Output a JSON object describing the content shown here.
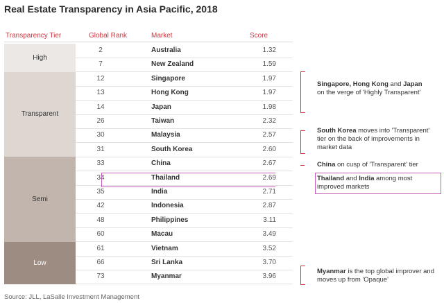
{
  "title": "Real Estate Transparency in Asia Pacific, 2018",
  "headers": {
    "tier": "Transparency Tier",
    "rank": "Global Rank",
    "market": "Market",
    "score": "Score"
  },
  "chart_data": {
    "type": "table",
    "columns": [
      "Transparency Tier",
      "Global Rank",
      "Market",
      "Score"
    ],
    "tiers": [
      {
        "name": "High",
        "color": "#ece8e5",
        "rows": 2
      },
      {
        "name": "Transparent",
        "color": "#ddd6d1",
        "rows": 6
      },
      {
        "name": "Semi",
        "color": "#c1b5ad",
        "rows": 6
      },
      {
        "name": "Low",
        "color": "#9c8c82",
        "rows": 3
      }
    ],
    "rows": [
      {
        "rank": "2",
        "market": "Australia",
        "score": "1.32"
      },
      {
        "rank": "7",
        "market": "New Zealand",
        "score": "1.59"
      },
      {
        "rank": "12",
        "market": "Singapore",
        "score": "1.97"
      },
      {
        "rank": "13",
        "market": "Hong Kong",
        "score": "1.97"
      },
      {
        "rank": "14",
        "market": "Japan",
        "score": "1.98"
      },
      {
        "rank": "26",
        "market": "Taiwan",
        "score": "2.32"
      },
      {
        "rank": "30",
        "market": "Malaysia",
        "score": "2.57"
      },
      {
        "rank": "31",
        "market": "South Korea",
        "score": "2.60"
      },
      {
        "rank": "33",
        "market": "China",
        "score": "2.67"
      },
      {
        "rank": "34",
        "market": "Thailand",
        "score": "2.69"
      },
      {
        "rank": "35",
        "market": "India",
        "score": "2.71"
      },
      {
        "rank": "42",
        "market": "Indonesia",
        "score": "2.87"
      },
      {
        "rank": "48",
        "market": "Philippines",
        "score": "3.11"
      },
      {
        "rank": "60",
        "market": "Macau",
        "score": "3.49"
      },
      {
        "rank": "61",
        "market": "Vietnam",
        "score": "3.52"
      },
      {
        "rank": "66",
        "market": "Sri Lanka",
        "score": "3.70"
      },
      {
        "rank": "73",
        "market": "Myanmar",
        "score": "3.96"
      }
    ]
  },
  "annotations": {
    "a1_bold": "Singapore, Hong Kong",
    "a1_mid": " and ",
    "a1_bold2": "Japan",
    "a1_rest": "on the verge of 'Highly Transparent'",
    "a2_bold": "South Korea",
    "a2_rest": " moves into 'Transparent' tier on the back of improvements in market data",
    "a3_bold": "China",
    "a3_rest": " on cusp of 'Transparent' tier",
    "a4_bold": "Thailand",
    "a4_mid": " and ",
    "a4_bold2": "India",
    "a4_rest": " among most improved markets",
    "a5_bold": "Myanmar",
    "a5_rest": " is the top global improver and moves up from 'Opaque'"
  },
  "source": "Source: JLL, LaSalle Investment Management",
  "colors": {
    "accent": "#d0343f",
    "highlight": "#c75ab8"
  }
}
